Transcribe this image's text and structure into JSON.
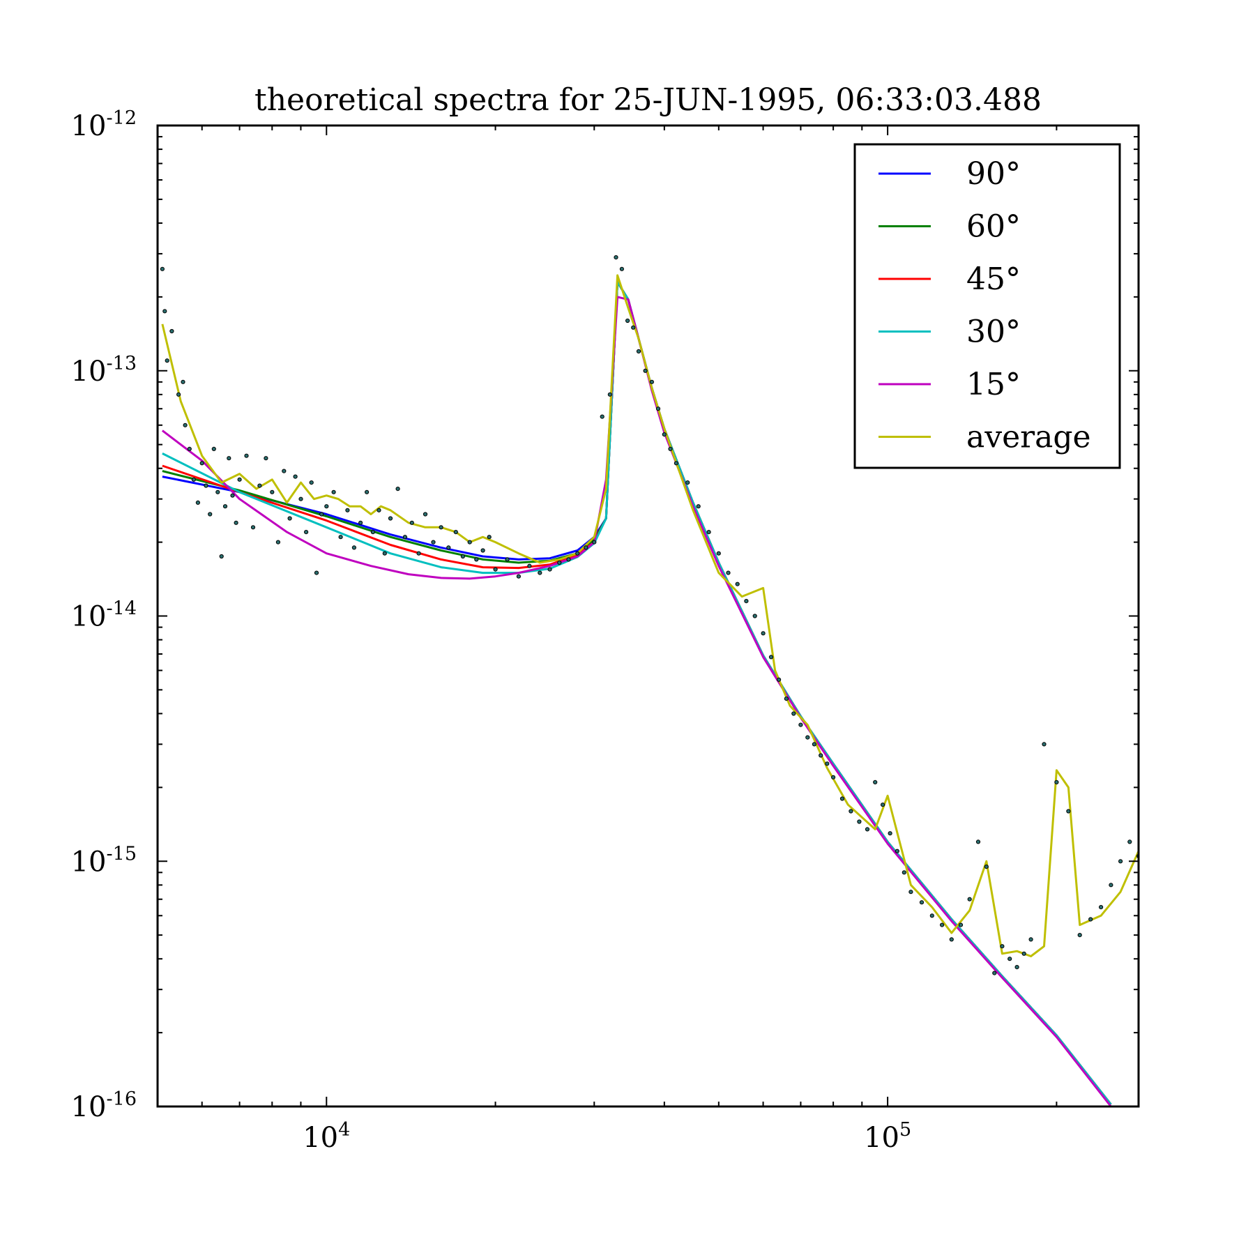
{
  "chart_data": {
    "type": "line",
    "title": "theoretical spectra for 25-JUN-1995, 06:33:03.488",
    "xlabel": "",
    "ylabel": "",
    "xscale": "log",
    "yscale": "log",
    "xlim": [
      5000,
      280000
    ],
    "ylim": [
      1e-16,
      1e-12
    ],
    "x_ticks": [
      {
        "value": 10000,
        "base": "10",
        "exp": "4"
      },
      {
        "value": 100000,
        "base": "10",
        "exp": "5"
      }
    ],
    "y_ticks": [
      {
        "value": 1e-16,
        "base": "10",
        "exp": "-16"
      },
      {
        "value": 1e-15,
        "base": "10",
        "exp": "-15"
      },
      {
        "value": 1e-14,
        "base": "10",
        "exp": "-14"
      },
      {
        "value": 1e-13,
        "base": "10",
        "exp": "-13"
      },
      {
        "value": 1e-12,
        "base": "10",
        "exp": "-12"
      }
    ],
    "legend": "top-right",
    "grid": false,
    "series": [
      {
        "name": "90°",
        "color": "#0000ff",
        "x": [
          5100,
          7000,
          10000,
          13000,
          16000,
          19000,
          22000,
          25000,
          28000,
          30000,
          31500,
          33000,
          34500,
          36000,
          38000,
          40000,
          45000,
          50000,
          60000,
          70000,
          80000,
          100000,
          130000,
          160000,
          200000,
          250000
        ],
        "y": [
          3.7e-14,
          3.2e-14,
          2.6e-14,
          2.15e-14,
          1.9e-14,
          1.75e-14,
          1.7e-14,
          1.72e-14,
          1.85e-14,
          2.1e-14,
          2.5e-14,
          2.3e-13,
          1.95e-13,
          1.35e-13,
          8.5e-14,
          5.8e-14,
          2.9e-14,
          1.65e-14,
          6.9e-15,
          3.9e-15,
          2.5e-15,
          1.2e-15,
          5.8e-16,
          3.4e-16,
          1.95e-16,
          1.02e-16
        ]
      },
      {
        "name": "60°",
        "color": "#008000",
        "x": [
          5100,
          7000,
          10000,
          13000,
          16000,
          19000,
          22000,
          25000,
          28000,
          30000,
          31500,
          33000,
          34500,
          36000,
          38000,
          40000,
          45000,
          50000,
          60000,
          70000,
          80000,
          100000,
          130000,
          160000,
          200000,
          250000
        ],
        "y": [
          3.9e-14,
          3.25e-14,
          2.55e-14,
          2.1e-14,
          1.85e-14,
          1.7e-14,
          1.65e-14,
          1.68e-14,
          1.8e-14,
          2.05e-14,
          2.5e-14,
          2.3e-13,
          1.95e-13,
          1.35e-13,
          8.5e-14,
          5.8e-14,
          2.9e-14,
          1.65e-14,
          6.9e-15,
          3.9e-15,
          2.5e-15,
          1.2e-15,
          5.8e-16,
          3.4e-16,
          1.95e-16,
          1.02e-16
        ]
      },
      {
        "name": "45°",
        "color": "#ff0000",
        "x": [
          5100,
          7000,
          10000,
          13000,
          16000,
          19000,
          22000,
          25000,
          28000,
          30000,
          31500,
          33000,
          34500,
          36000,
          38000,
          40000,
          45000,
          50000,
          60000,
          70000,
          80000,
          100000,
          130000,
          160000,
          200000,
          250000
        ],
        "y": [
          4.1e-14,
          3.2e-14,
          2.45e-14,
          1.95e-14,
          1.7e-14,
          1.58e-14,
          1.57e-14,
          1.62e-14,
          1.78e-14,
          2e-14,
          2.5e-14,
          2.3e-13,
          1.95e-13,
          1.35e-13,
          8.5e-14,
          5.8e-14,
          2.9e-14,
          1.65e-14,
          6.9e-15,
          3.9e-15,
          2.5e-15,
          1.2e-15,
          5.8e-16,
          3.4e-16,
          1.95e-16,
          1.02e-16
        ]
      },
      {
        "name": "30°",
        "color": "#00bfbf",
        "x": [
          5100,
          7000,
          10000,
          13000,
          16000,
          19000,
          22000,
          25000,
          28000,
          30000,
          31500,
          33000,
          34500,
          36000,
          38000,
          40000,
          45000,
          50000,
          60000,
          70000,
          80000,
          100000,
          130000,
          160000,
          200000,
          250000
        ],
        "y": [
          4.6e-14,
          3.2e-14,
          2.3e-14,
          1.8e-14,
          1.58e-14,
          1.5e-14,
          1.5e-14,
          1.56e-14,
          1.74e-14,
          1.98e-14,
          2.5e-14,
          2.3e-13,
          1.95e-13,
          1.35e-13,
          8.5e-14,
          5.8e-14,
          2.9e-14,
          1.65e-14,
          6.9e-15,
          3.9e-15,
          2.5e-15,
          1.2e-15,
          5.8e-16,
          3.4e-16,
          1.95e-16,
          1.02e-16
        ]
      },
      {
        "name": "15°",
        "color": "#bf00bf",
        "x": [
          5100,
          6000,
          7000,
          8500,
          10000,
          12000,
          14000,
          16000,
          18000,
          20000,
          22000,
          25000,
          28000,
          30000,
          31500,
          33000,
          34500,
          36000,
          38000,
          40000,
          45000,
          50000,
          60000,
          70000,
          80000,
          100000,
          130000,
          160000,
          200000,
          250000
        ],
        "y": [
          5.7e-14,
          4.3e-14,
          3e-14,
          2.2e-14,
          1.8e-14,
          1.6e-14,
          1.48e-14,
          1.43e-14,
          1.42e-14,
          1.45e-14,
          1.5e-14,
          1.6e-14,
          1.75e-14,
          2e-14,
          3.6e-14,
          2e-13,
          1.95e-13,
          1.35e-13,
          8.3e-14,
          5.6e-14,
          2.8e-14,
          1.6e-14,
          6.8e-15,
          3.85e-15,
          2.45e-15,
          1.18e-15,
          5.7e-16,
          3.35e-16,
          1.92e-16,
          1e-16
        ]
      },
      {
        "name": "average",
        "color": "#bfbf00",
        "x": [
          5100,
          5500,
          6000,
          6500,
          7000,
          7500,
          8000,
          8500,
          9000,
          9500,
          10000,
          10500,
          11000,
          11500,
          12000,
          12500,
          13000,
          14000,
          15000,
          16000,
          17000,
          18000,
          19000,
          20000,
          22000,
          24000,
          26000,
          28000,
          30000,
          31500,
          33000,
          34500,
          36000,
          38000,
          40000,
          45000,
          50000,
          55000,
          60000,
          63000,
          67000,
          72000,
          78000,
          85000,
          95000,
          100000,
          110000,
          120000,
          130000,
          140000,
          150000,
          160000,
          170000,
          180000,
          190000,
          200000,
          210000,
          220000,
          240000,
          260000,
          280000
        ],
        "y": [
          1.55e-13,
          7.5e-14,
          4.5e-14,
          3.5e-14,
          3.8e-14,
          3.3e-14,
          3.6e-14,
          2.9e-14,
          3.5e-14,
          3e-14,
          3.1e-14,
          3e-14,
          2.8e-14,
          2.8e-14,
          2.6e-14,
          2.8e-14,
          2.7e-14,
          2.4e-14,
          2.3e-14,
          2.3e-14,
          2.2e-14,
          2e-14,
          2.1e-14,
          2e-14,
          1.8e-14,
          1.65e-14,
          1.7e-14,
          1.8e-14,
          2.1e-14,
          3.3e-14,
          2.45e-13,
          1.8e-13,
          1.35e-13,
          8.5e-14,
          5.8e-14,
          2.7e-14,
          1.5e-14,
          1.2e-14,
          1.3e-14,
          6e-15,
          4.3e-15,
          3.6e-15,
          2.4e-15,
          1.7e-15,
          1.35e-15,
          1.85e-15,
          8e-16,
          6.5e-16,
          5.1e-16,
          6.3e-16,
          1e-15,
          4.2e-16,
          4.3e-16,
          4.1e-16,
          4.5e-16,
          2.35e-15,
          2e-15,
          5.5e-16,
          6e-16,
          7.5e-16,
          1.1e-15
        ]
      }
    ],
    "scatter_points": {
      "x": [
        5100,
        5150,
        5200,
        5300,
        5450,
        5550,
        5600,
        5700,
        5800,
        5900,
        6000,
        6100,
        6200,
        6300,
        6400,
        6500,
        6600,
        6700,
        6800,
        6900,
        7000,
        7200,
        7400,
        7600,
        7800,
        8000,
        8200,
        8400,
        8600,
        8800,
        9000,
        9200,
        9400,
        9600,
        9800,
        10000,
        10300,
        10600,
        10900,
        11200,
        11500,
        11800,
        12100,
        12400,
        12700,
        13000,
        13400,
        13800,
        14200,
        14600,
        15000,
        15500,
        16000,
        16500,
        17000,
        17500,
        18000,
        18500,
        19000,
        19500,
        20000,
        21000,
        22000,
        23000,
        24000,
        25000,
        26000,
        27000,
        28000,
        29000,
        30000,
        31000,
        32000,
        32800,
        33600,
        34400,
        35200,
        36000,
        37000,
        38000,
        39000,
        40000,
        41000,
        42000,
        44000,
        46000,
        48000,
        50000,
        52000,
        54000,
        56000,
        58000,
        60000,
        62000,
        64000,
        66000,
        68000,
        70000,
        72000,
        74000,
        76000,
        78000,
        80000,
        83000,
        86000,
        89000,
        92000,
        95000,
        98000,
        101000,
        104000,
        107000,
        110000,
        115000,
        120000,
        125000,
        130000,
        135000,
        140000,
        145000,
        150000,
        155000,
        160000,
        165000,
        170000,
        175000,
        180000,
        190000,
        200000,
        210000,
        220000,
        230000,
        240000,
        250000,
        260000,
        270000,
        280000
      ],
      "y": [
        2.6e-13,
        1.75e-13,
        1.1e-13,
        1.45e-13,
        8e-14,
        9e-14,
        6e-14,
        4.8e-14,
        3.6e-14,
        2.9e-14,
        4.2e-14,
        3.4e-14,
        2.6e-14,
        4.8e-14,
        3.2e-14,
        1.75e-14,
        2.8e-14,
        4.4e-14,
        3.1e-14,
        2.4e-14,
        3.6e-14,
        4.5e-14,
        2.3e-14,
        3.4e-14,
        4.4e-14,
        3.2e-14,
        2e-14,
        3.9e-14,
        2.5e-14,
        3.7e-14,
        3e-14,
        2.2e-14,
        3.5e-14,
        1.5e-14,
        2.6e-14,
        2.8e-14,
        3.2e-14,
        2.1e-14,
        2.7e-14,
        1.9e-14,
        2.4e-14,
        3.2e-14,
        2.2e-14,
        2.7e-14,
        1.8e-14,
        2.5e-14,
        3.3e-14,
        2.1e-14,
        2.4e-14,
        1.8e-14,
        2.6e-14,
        2e-14,
        2.3e-14,
        1.9e-14,
        2.2e-14,
        1.75e-14,
        2e-14,
        1.7e-14,
        1.85e-14,
        2.1e-14,
        1.55e-14,
        1.7e-14,
        1.45e-14,
        1.6e-14,
        1.5e-14,
        1.55e-14,
        1.65e-14,
        1.7e-14,
        1.8e-14,
        1.9e-14,
        2e-14,
        6.5e-14,
        8e-14,
        2.9e-13,
        2.6e-13,
        1.6e-13,
        1.5e-13,
        1.2e-13,
        1e-13,
        9e-14,
        7e-14,
        5.5e-14,
        4.8e-14,
        4.2e-14,
        3.5e-14,
        2.8e-14,
        2.2e-14,
        1.8e-14,
        1.5e-14,
        1.35e-14,
        1.15e-14,
        1e-14,
        8.5e-15,
        6.8e-15,
        5.5e-15,
        4.6e-15,
        4e-15,
        3.6e-15,
        3.2e-15,
        3e-15,
        2.7e-15,
        2.5e-15,
        2.2e-15,
        1.8e-15,
        1.6e-15,
        1.45e-15,
        1.35e-15,
        2.1e-15,
        1.7e-15,
        1.3e-15,
        1.1e-15,
        9e-16,
        7.5e-16,
        6.8e-16,
        6e-16,
        5.5e-16,
        4.8e-16,
        5.5e-16,
        7e-16,
        1.2e-15,
        9.5e-16,
        3.5e-16,
        4.5e-16,
        4e-16,
        3.7e-16,
        4.2e-16,
        4.8e-16,
        3e-15,
        2.1e-15,
        1.6e-15,
        5e-16,
        5.8e-16,
        6.5e-16,
        8e-16,
        1e-15,
        1.2e-15,
        1.05e-15
      ]
    }
  }
}
